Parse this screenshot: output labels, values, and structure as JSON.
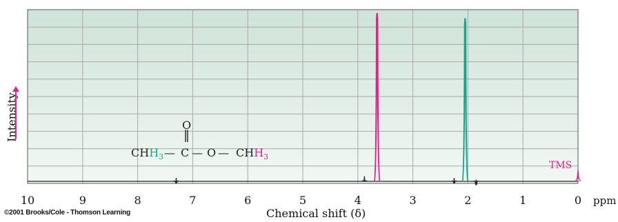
{
  "chart_data": {
    "type": "line",
    "title": "",
    "xlabel": "Chemical shift (δ)",
    "ylabel": "Intensity",
    "xlim": [
      10,
      0
    ],
    "x_reversed": true,
    "x_ticks": [
      "10",
      "9",
      "8",
      "7",
      "6",
      "5",
      "4",
      "3",
      "2",
      "1",
      "0"
    ],
    "x_unit": "ppm",
    "grid": true,
    "background": "#d6e8df",
    "baseline_color": "#222222",
    "peaks": [
      {
        "shift": 3.65,
        "relative_height": 0.98,
        "color": "#e0218a",
        "assignment": "O–CH3"
      },
      {
        "shift": 2.05,
        "relative_height": 0.95,
        "color": "#17a589",
        "assignment": "C–CH3"
      },
      {
        "shift": 0.0,
        "relative_height": 0.07,
        "color": "#e0218a",
        "assignment": "TMS"
      },
      {
        "shift": 3.88,
        "relative_height": 0.03,
        "color": "#222222",
        "assignment": ""
      },
      {
        "shift": 7.3,
        "relative_height": 0.02,
        "color": "#222222",
        "assignment": ""
      },
      {
        "shift": 2.25,
        "relative_height": 0.02,
        "color": "#222222",
        "assignment": ""
      },
      {
        "shift": 1.85,
        "relative_height": 0.01,
        "color": "#222222",
        "assignment": ""
      }
    ],
    "annotations": {
      "tms_label": "TMS"
    }
  },
  "molecule": {
    "ch3_left": "CH",
    "ch3_left_sub": "3",
    "bond1": "—",
    "carbon": "C",
    "oxygen_top": "O",
    "double_bond": "‖",
    "bond2": "—",
    "oxygen": "O",
    "bond3": "—",
    "ch3_right": "CH",
    "ch3_right_sub": "3"
  },
  "footer": {
    "copyright": "©2001 Brooks/Cole - Thomson Learning"
  }
}
